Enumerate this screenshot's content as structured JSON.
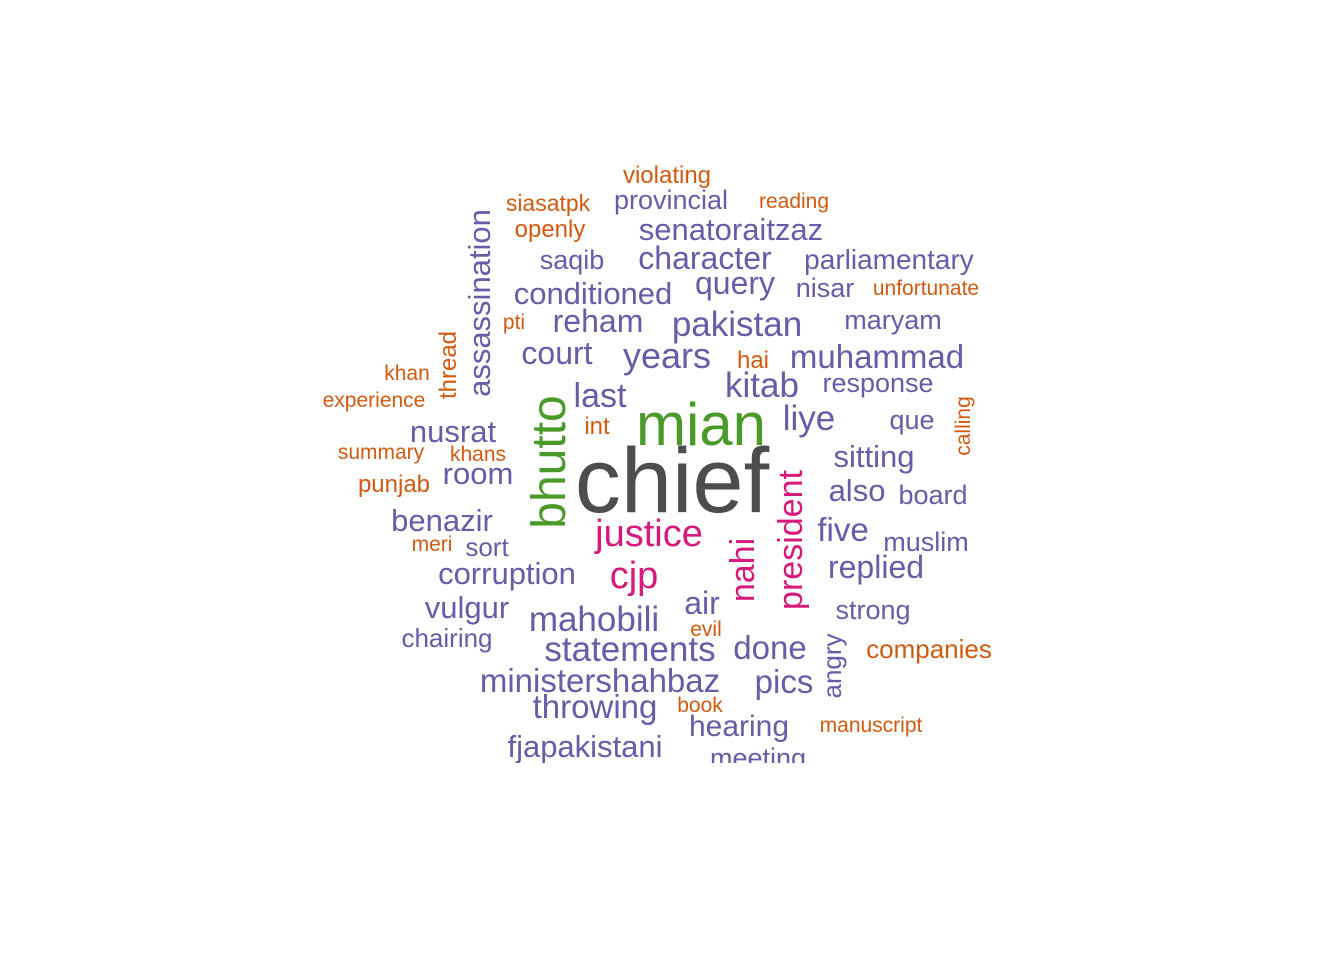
{
  "colors": {
    "gray": "#4d4d4d",
    "green": "#4a9a2a",
    "magenta": "#d6197a",
    "purple": "#6a5aa8",
    "orange": "#d25a10"
  },
  "words": [
    {
      "text": "chief",
      "color": "gray"
    },
    {
      "text": "mian",
      "color": "green"
    },
    {
      "text": "bhutto",
      "color": "green"
    },
    {
      "text": "justice",
      "color": "magenta"
    },
    {
      "text": "cjp",
      "color": "magenta"
    },
    {
      "text": "nahi",
      "color": "magenta"
    },
    {
      "text": "president",
      "color": "magenta"
    },
    {
      "text": "violating",
      "color": "orange"
    },
    {
      "text": "provincial",
      "color": "purple"
    },
    {
      "text": "reading",
      "color": "orange"
    },
    {
      "text": "siasatpk",
      "color": "orange"
    },
    {
      "text": "senatoraitzaz",
      "color": "purple"
    },
    {
      "text": "openly",
      "color": "orange"
    },
    {
      "text": "assassination",
      "color": "purple"
    },
    {
      "text": "saqib",
      "color": "purple"
    },
    {
      "text": "character",
      "color": "purple"
    },
    {
      "text": "parliamentary",
      "color": "purple"
    },
    {
      "text": "query",
      "color": "purple"
    },
    {
      "text": "conditioned",
      "color": "purple"
    },
    {
      "text": "nisar",
      "color": "purple"
    },
    {
      "text": "unfortunate",
      "color": "orange"
    },
    {
      "text": "pti",
      "color": "orange"
    },
    {
      "text": "reham",
      "color": "purple"
    },
    {
      "text": "pakistan",
      "color": "purple"
    },
    {
      "text": "maryam",
      "color": "purple"
    },
    {
      "text": "thread",
      "color": "orange"
    },
    {
      "text": "court",
      "color": "purple"
    },
    {
      "text": "years",
      "color": "purple"
    },
    {
      "text": "hai",
      "color": "orange"
    },
    {
      "text": "muhammad",
      "color": "purple"
    },
    {
      "text": "khan",
      "color": "orange"
    },
    {
      "text": "kitab",
      "color": "purple"
    },
    {
      "text": "response",
      "color": "purple"
    },
    {
      "text": "experience",
      "color": "orange"
    },
    {
      "text": "last",
      "color": "purple"
    },
    {
      "text": "calling",
      "color": "orange"
    },
    {
      "text": "liye",
      "color": "purple"
    },
    {
      "text": "que",
      "color": "purple"
    },
    {
      "text": "nusrat",
      "color": "purple"
    },
    {
      "text": "int",
      "color": "orange"
    },
    {
      "text": "summary",
      "color": "orange"
    },
    {
      "text": "khans",
      "color": "orange"
    },
    {
      "text": "sitting",
      "color": "purple"
    },
    {
      "text": "room",
      "color": "purple"
    },
    {
      "text": "punjab",
      "color": "orange"
    },
    {
      "text": "also",
      "color": "purple"
    },
    {
      "text": "board",
      "color": "purple"
    },
    {
      "text": "benazir",
      "color": "purple"
    },
    {
      "text": "five",
      "color": "purple"
    },
    {
      "text": "meri",
      "color": "orange"
    },
    {
      "text": "sort",
      "color": "purple"
    },
    {
      "text": "muslim",
      "color": "purple"
    },
    {
      "text": "corruption",
      "color": "purple"
    },
    {
      "text": "replied",
      "color": "purple"
    },
    {
      "text": "vulgur",
      "color": "purple"
    },
    {
      "text": "air",
      "color": "purple"
    },
    {
      "text": "strong",
      "color": "purple"
    },
    {
      "text": "mahobili",
      "color": "purple"
    },
    {
      "text": "chairing",
      "color": "purple"
    },
    {
      "text": "evil",
      "color": "orange"
    },
    {
      "text": "statements",
      "color": "purple"
    },
    {
      "text": "done",
      "color": "purple"
    },
    {
      "text": "angry",
      "color": "purple"
    },
    {
      "text": "companies",
      "color": "orange"
    },
    {
      "text": "ministershahbaz",
      "color": "purple"
    },
    {
      "text": "pics",
      "color": "purple"
    },
    {
      "text": "throwing",
      "color": "purple"
    },
    {
      "text": "book",
      "color": "orange"
    },
    {
      "text": "hearing",
      "color": "purple"
    },
    {
      "text": "manuscript",
      "color": "orange"
    },
    {
      "text": "fjapakistani",
      "color": "purple"
    },
    {
      "text": "meeting",
      "color": "purple"
    }
  ]
}
